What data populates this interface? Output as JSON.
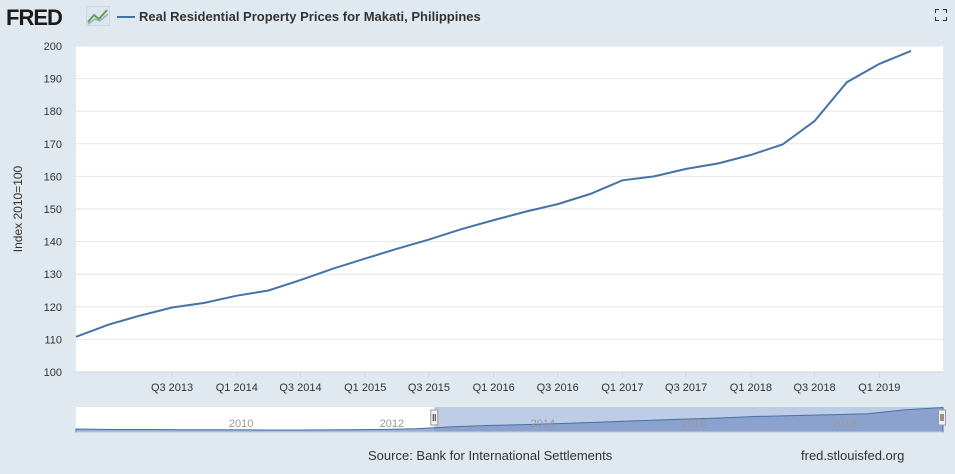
{
  "header": {
    "logo_text": "FRED",
    "title": "Real Residential Property Prices for Makati, Philippines"
  },
  "footer": {
    "source": "Source: Bank for International Settlements",
    "site": "fred.stlouisfed.org"
  },
  "colors": {
    "series": "#4572a7",
    "background": "#e1e9f0",
    "plot": "#ffffff",
    "grid": "#e6e6e6",
    "navigator_mask": "#b3c4e0",
    "navigator_fill": "#7993c6"
  },
  "icons": {
    "logo_graph": "line-chart-icon",
    "fullscreen": "fullscreen-icon"
  },
  "chart_data": {
    "type": "line",
    "title": "Real Residential Property Prices for Makati, Philippines",
    "xlabel": "",
    "ylabel": "Index 2010=100",
    "ylim": [
      100,
      200
    ],
    "yticks": [
      100,
      110,
      120,
      130,
      140,
      150,
      160,
      170,
      180,
      190,
      200
    ],
    "xlim": [
      "2012-10-01",
      "2019-07-01"
    ],
    "xticks": [
      {
        "label": "Q3 2013",
        "date": "2013-07-01"
      },
      {
        "label": "Q1 2014",
        "date": "2014-01-01"
      },
      {
        "label": "Q3 2014",
        "date": "2014-07-01"
      },
      {
        "label": "Q1 2015",
        "date": "2015-01-01"
      },
      {
        "label": "Q3 2015",
        "date": "2015-07-01"
      },
      {
        "label": "Q1 2016",
        "date": "2016-01-01"
      },
      {
        "label": "Q3 2016",
        "date": "2016-07-01"
      },
      {
        "label": "Q1 2017",
        "date": "2017-01-01"
      },
      {
        "label": "Q3 2017",
        "date": "2017-07-01"
      },
      {
        "label": "Q1 2018",
        "date": "2018-01-01"
      },
      {
        "label": "Q3 2018",
        "date": "2018-07-01"
      },
      {
        "label": "Q1 2019",
        "date": "2019-01-01"
      }
    ],
    "grid": true,
    "series": [
      {
        "name": "Real Residential Property Prices for Makati, Philippines",
        "x": [
          "2012-10-01",
          "2013-01-01",
          "2013-04-01",
          "2013-07-01",
          "2013-10-01",
          "2014-01-01",
          "2014-04-01",
          "2014-07-01",
          "2014-10-01",
          "2015-01-01",
          "2015-04-01",
          "2015-07-01",
          "2015-10-01",
          "2016-01-01",
          "2016-04-01",
          "2016-07-01",
          "2016-10-01",
          "2017-01-01",
          "2017-04-01",
          "2017-07-01",
          "2017-10-01",
          "2018-01-01",
          "2018-04-01",
          "2018-07-01",
          "2018-10-01",
          "2019-01-01",
          "2019-04-01"
        ],
        "values": [
          110.8,
          114.5,
          117.3,
          119.8,
          121.2,
          123.4,
          125.0,
          128.2,
          131.7,
          134.8,
          137.8,
          140.6,
          143.8,
          146.6,
          149.2,
          151.5,
          154.6,
          158.8,
          160.0,
          162.3,
          164.0,
          166.6,
          169.8,
          177.0,
          188.9,
          194.5,
          198.5
        ]
      }
    ],
    "navigator": {
      "labels": [
        {
          "label": "2010",
          "date": "2010-01-01"
        },
        {
          "label": "2012",
          "date": "2012-01-01"
        },
        {
          "label": "2014",
          "date": "2014-01-01"
        },
        {
          "label": "2016",
          "date": "2016-01-01"
        },
        {
          "label": "2018",
          "date": "2018-01-01"
        }
      ],
      "range": [
        "2008-01-01",
        "2019-07-01"
      ],
      "selected": [
        "2012-10-01",
        "2019-07-01"
      ],
      "series": {
        "x": [
          "2008-01-01",
          "2008-07-01",
          "2009-01-01",
          "2009-07-01",
          "2010-01-01",
          "2010-07-01",
          "2011-01-01",
          "2011-07-01",
          "2012-01-01",
          "2012-07-01",
          "2013-01-01",
          "2013-07-01",
          "2014-01-01",
          "2014-07-01",
          "2015-01-01",
          "2015-07-01",
          "2016-01-01",
          "2016-07-01",
          "2017-01-01",
          "2017-07-01",
          "2018-01-01",
          "2018-07-01",
          "2019-01-01",
          "2019-07-01"
        ],
        "values": [
          103,
          101,
          101,
          100,
          100,
          99,
          99,
          100,
          101,
          104,
          113,
          119,
          123,
          128,
          134,
          140,
          146,
          151,
          158,
          162,
          166,
          170,
          188,
          198
        ]
      }
    }
  }
}
